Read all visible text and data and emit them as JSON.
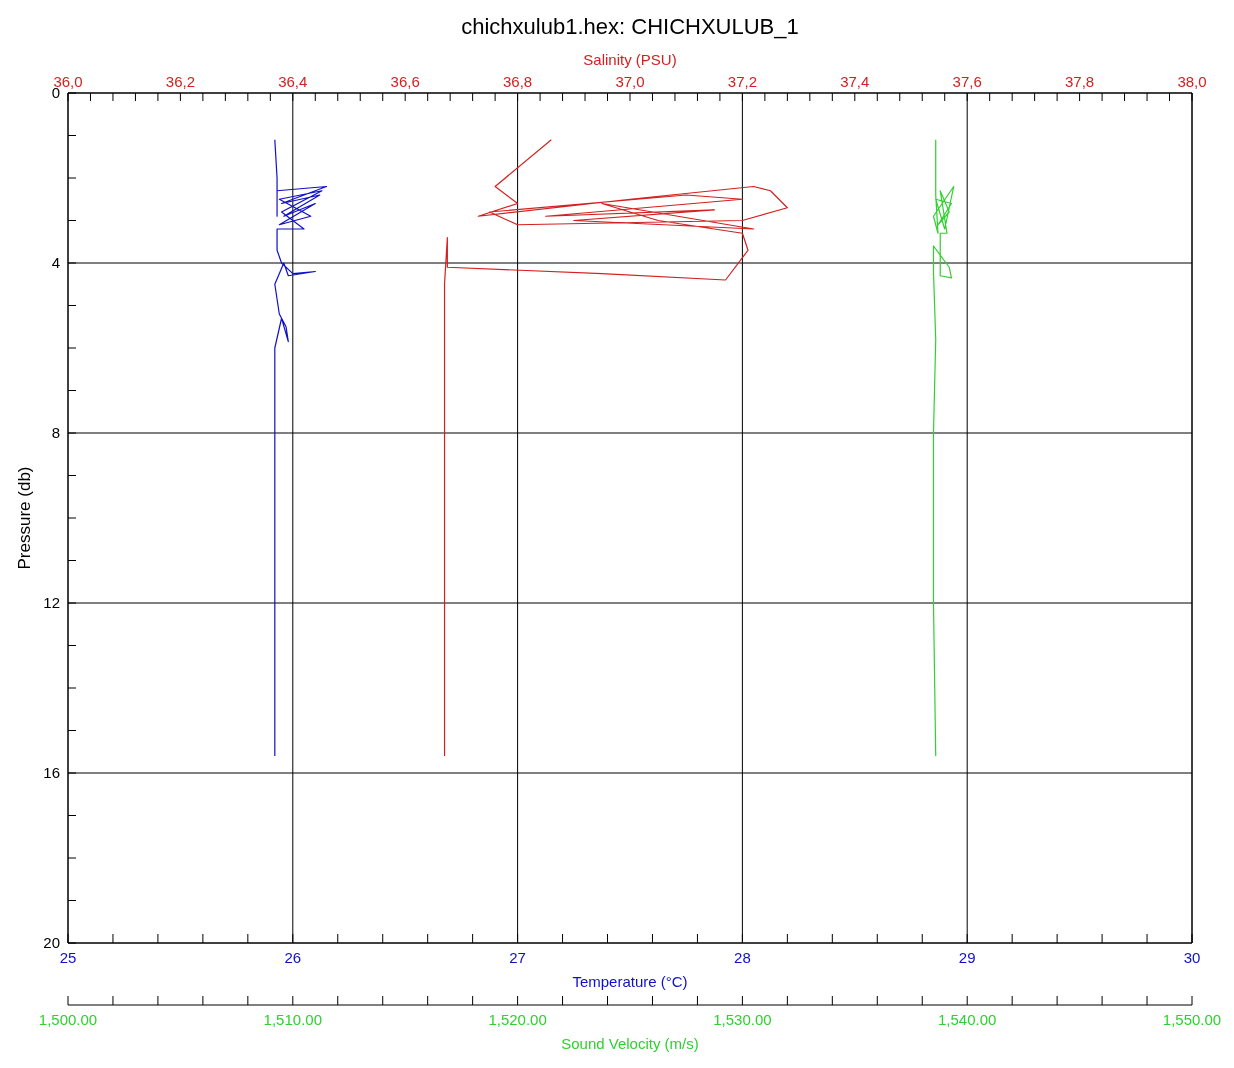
{
  "chart_data": [
    {
      "type": "line",
      "title": "chichxulub1.hex: CHICHXULUB_1",
      "xlabel": "Temperature (°C)",
      "x2label": "Salinity (PSU)",
      "ylabel": "Pressure (db)",
      "grid": true,
      "ylim": [
        20,
        0
      ],
      "yticks": [
        0,
        {
          "value": 1,
          "label": null
        },
        {
          "value": 2,
          "label": null
        },
        {
          "value": 3,
          "label": null
        },
        4,
        {
          "value": 5,
          "label": null
        },
        {
          "value": 6,
          "label": null
        },
        {
          "value": 7,
          "label": null
        },
        8,
        {
          "value": 9,
          "label": null
        },
        {
          "value": 10,
          "label": null
        },
        {
          "value": 11,
          "label": null
        },
        12,
        {
          "value": 13,
          "label": null
        },
        {
          "value": 14,
          "label": null
        },
        {
          "value": 15,
          "label": null
        },
        16,
        {
          "value": 17,
          "label": null
        },
        {
          "value": 18,
          "label": null
        },
        {
          "value": 19,
          "label": null
        },
        20
      ],
      "xlim": [
        25,
        30
      ],
      "xticks": [
        25,
        {
          "value": 25.2,
          "label": null
        },
        {
          "value": 25.4,
          "label": null
        },
        {
          "value": 25.6,
          "label": null
        },
        {
          "value": 25.8,
          "label": null
        },
        26,
        {
          "value": 26.2,
          "label": null
        },
        {
          "value": 26.4,
          "label": null
        },
        {
          "value": 26.6,
          "label": null
        },
        {
          "value": 26.8,
          "label": null
        },
        27,
        {
          "value": 27.2,
          "label": null
        },
        {
          "value": 27.4,
          "label": null
        },
        {
          "value": 27.6,
          "label": null
        },
        {
          "value": 27.8,
          "label": null
        },
        28,
        {
          "value": 28.2,
          "label": null
        },
        {
          "value": 28.4,
          "label": null
        },
        {
          "value": 28.6,
          "label": null
        },
        {
          "value": 28.8,
          "label": null
        },
        29,
        {
          "value": 29.2,
          "label": null
        },
        {
          "value": 29.4,
          "label": null
        },
        {
          "value": 29.6,
          "label": null
        },
        {
          "value": 29.8,
          "label": null
        },
        30
      ],
      "x2lim": [
        36,
        38
      ],
      "x2ticks": [
        {
          "value": 36,
          "label": "36,0"
        },
        {
          "value": 36.04,
          "label": null
        },
        {
          "value": 36.08,
          "label": null
        },
        {
          "value": 36.12,
          "label": null
        },
        {
          "value": 36.16,
          "label": null
        },
        {
          "value": 36.2,
          "label": "36,2"
        },
        {
          "value": 36.24,
          "label": null
        },
        {
          "value": 36.28,
          "label": null
        },
        {
          "value": 36.32,
          "label": null
        },
        {
          "value": 36.36,
          "label": null
        },
        {
          "value": 36.4,
          "label": "36,4"
        },
        {
          "value": 36.44,
          "label": null
        },
        {
          "value": 36.48,
          "label": null
        },
        {
          "value": 36.52,
          "label": null
        },
        {
          "value": 36.56,
          "label": null
        },
        {
          "value": 36.6,
          "label": "36,6"
        },
        {
          "value": 36.64,
          "label": null
        },
        {
          "value": 36.68,
          "label": null
        },
        {
          "value": 36.72,
          "label": null
        },
        {
          "value": 36.76,
          "label": null
        },
        {
          "value": 36.8,
          "label": "36,8"
        },
        {
          "value": 36.84,
          "label": null
        },
        {
          "value": 36.88,
          "label": null
        },
        {
          "value": 36.92,
          "label": null
        },
        {
          "value": 36.96,
          "label": null
        },
        {
          "value": 37,
          "label": "37,0"
        },
        {
          "value": 37.04,
          "label": null
        },
        {
          "value": 37.08,
          "label": null
        },
        {
          "value": 37.12,
          "label": null
        },
        {
          "value": 37.16,
          "label": null
        },
        {
          "value": 37.2,
          "label": "37,2"
        },
        {
          "value": 37.24,
          "label": null
        },
        {
          "value": 37.28,
          "label": null
        },
        {
          "value": 37.32,
          "label": null
        },
        {
          "value": 37.36,
          "label": null
        },
        {
          "value": 37.4,
          "label": "37,4"
        },
        {
          "value": 37.44,
          "label": null
        },
        {
          "value": 37.48,
          "label": null
        },
        {
          "value": 37.52,
          "label": null
        },
        {
          "value": 37.56,
          "label": null
        },
        {
          "value": 37.6,
          "label": "37,6"
        },
        {
          "value": 37.64,
          "label": null
        },
        {
          "value": 37.68,
          "label": null
        },
        {
          "value": 37.72,
          "label": null
        },
        {
          "value": 37.76,
          "label": null
        },
        {
          "value": 37.8,
          "label": "37,8"
        },
        {
          "value": 37.84,
          "label": null
        },
        {
          "value": 37.88,
          "label": null
        },
        {
          "value": 37.92,
          "label": null
        },
        {
          "value": 37.96,
          "label": null
        },
        {
          "value": 38,
          "label": "38,0"
        }
      ],
      "series": [
        {
          "color": "#1010c8",
          "x": [
            25.92,
            25.93,
            25.93,
            25.93,
            26.15,
            25.95,
            26.12,
            25.96,
            26.1,
            25.94,
            26.08,
            25.94,
            26.13,
            25.95,
            26.05,
            25.93,
            25.93,
            25.95,
            26.0,
            26.1,
            25.98,
            25.96,
            25.92,
            25.94,
            25.97,
            25.98,
            25.95,
            25.92,
            25.92,
            25.92,
            25.92,
            25.92,
            25.92
          ],
          "values": [
            1.1,
            2.0,
            2.9,
            2.3,
            2.2,
            2.6,
            2.4,
            2.9,
            2.6,
            3.1,
            2.9,
            2.5,
            2.3,
            2.8,
            3.2,
            3.2,
            3.7,
            4.0,
            4.25,
            4.2,
            4.3,
            4.0,
            4.5,
            5.2,
            5.5,
            5.85,
            5.3,
            6.0,
            8.0,
            10,
            12,
            14,
            15.6
          ]
        },
        {
          "axis": "x2",
          "color": "#d42020",
          "x": [
            36.86,
            36.76,
            36.8,
            36.73,
            37.0,
            37.22,
            37.25,
            37.28,
            37.2,
            36.8,
            36.75,
            37.1,
            37.2,
            36.85,
            37.15,
            36.9,
            37.22,
            36.95,
            37.05,
            37.2,
            37.21,
            37.17,
            36.95,
            36.675,
            36.675,
            36.67,
            36.67,
            36.67,
            36.67
          ],
          "values": [
            1.1,
            2.2,
            2.6,
            2.9,
            2.5,
            2.2,
            2.3,
            2.7,
            3.0,
            3.1,
            2.8,
            2.4,
            2.5,
            2.9,
            2.75,
            3.0,
            3.2,
            2.6,
            3.0,
            3.3,
            3.7,
            4.4,
            4.25,
            4.1,
            3.4,
            4.5,
            8,
            12,
            15.6
          ]
        }
      ]
    },
    {
      "type": "line",
      "xlabel": "Sound Velocity (m/s)",
      "tick_labels": "x",
      "ylim": [
        20,
        0
      ],
      "xlim": [
        1500,
        1550
      ],
      "xticks": [
        {
          "value": 1500,
          "label": "1,500.00"
        },
        {
          "value": 1502,
          "label": null
        },
        {
          "value": 1504,
          "label": null
        },
        {
          "value": 1506,
          "label": null
        },
        {
          "value": 1508,
          "label": null
        },
        {
          "value": 1510,
          "label": "1,510.00"
        },
        {
          "value": 1512,
          "label": null
        },
        {
          "value": 1514,
          "label": null
        },
        {
          "value": 1516,
          "label": null
        },
        {
          "value": 1518,
          "label": null
        },
        {
          "value": 1520,
          "label": "1,520.00"
        },
        {
          "value": 1522,
          "label": null
        },
        {
          "value": 1524,
          "label": null
        },
        {
          "value": 1526,
          "label": null
        },
        {
          "value": 1528,
          "label": null
        },
        {
          "value": 1530,
          "label": "1,530.00"
        },
        {
          "value": 1532,
          "label": null
        },
        {
          "value": 1534,
          "label": null
        },
        {
          "value": 1536,
          "label": null
        },
        {
          "value": 1538,
          "label": null
        },
        {
          "value": 1540,
          "label": "1,540.00"
        },
        {
          "value": 1542,
          "label": null
        },
        {
          "value": 1544,
          "label": null
        },
        {
          "value": 1546,
          "label": null
        },
        {
          "value": 1548,
          "label": null
        },
        {
          "value": 1550,
          "label": "1,550.00"
        }
      ],
      "series": [
        {
          "color": "#30d030",
          "x": [
            1538.6,
            1538.6,
            1538.7,
            1538.5,
            1539.4,
            1539.0,
            1538.6,
            1539.3,
            1538.7,
            1539.2,
            1538.8,
            1539.1,
            1538.8,
            1538.8,
            1539.3,
            1539.2,
            1538.5,
            1538.5,
            1538.6,
            1538.5,
            1538.5,
            1538.6
          ],
          "values": [
            1.1,
            2.4,
            3.3,
            2.9,
            2.2,
            3.2,
            2.5,
            2.6,
            3.1,
            2.8,
            2.3,
            3.3,
            3.3,
            4.3,
            4.35,
            4.1,
            3.6,
            4.2,
            5.8,
            8,
            12,
            15.6
          ]
        }
      ]
    }
  ]
}
